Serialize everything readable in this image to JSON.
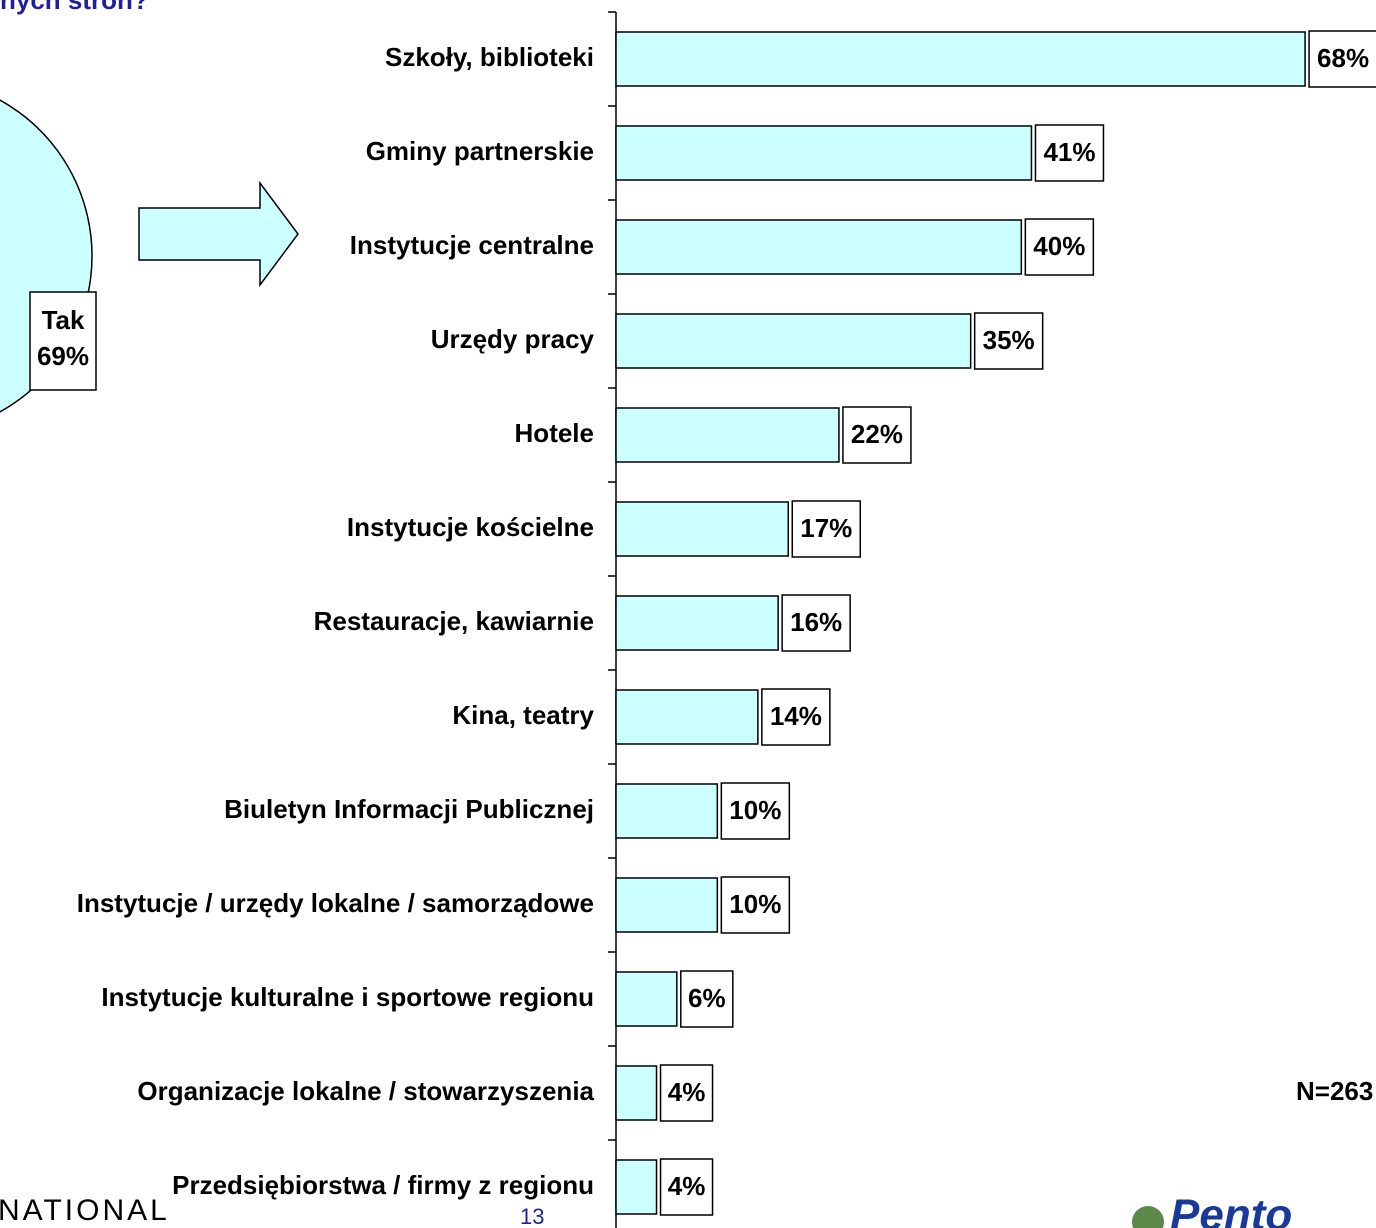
{
  "chart_data": [
    {
      "type": "barh",
      "title": "nych stron?",
      "categories": [
        "Szkoły, biblioteki",
        "Gminy partnerskie",
        "Instytucje centralne",
        "Urzędy pracy",
        "Hotele",
        "Instytucje kościelne",
        "Restauracje, kawiarnie",
        "Kina, teatry",
        "Biuletyn Informacji Publicznej",
        "Instytucje / urzędy lokalne / samorządowe",
        "Instytucje kulturalne i sportowe regionu",
        "Organizacje lokalne / stowarzyszenia",
        "Przedsiębiorstwa / firmy z regionu"
      ],
      "values": [
        68,
        41,
        40,
        35,
        22,
        17,
        16,
        14,
        10,
        10,
        6,
        4,
        4
      ],
      "value_labels": [
        "68%",
        "41%",
        "40%",
        "35%",
        "22%",
        "17%",
        "16%",
        "14%",
        "10%",
        "10%",
        "6%",
        "4%",
        "4%"
      ],
      "color": "#ccffff",
      "xlim": [
        0,
        75
      ],
      "annotation": "N=263"
    },
    {
      "type": "pie",
      "categories": [
        "Tak"
      ],
      "values": [
        69
      ],
      "value_labels": [
        "69%"
      ],
      "color": "#ccffff"
    }
  ],
  "footer": {
    "brand": "NATIONAL",
    "page": "13",
    "logo": "Pento"
  }
}
